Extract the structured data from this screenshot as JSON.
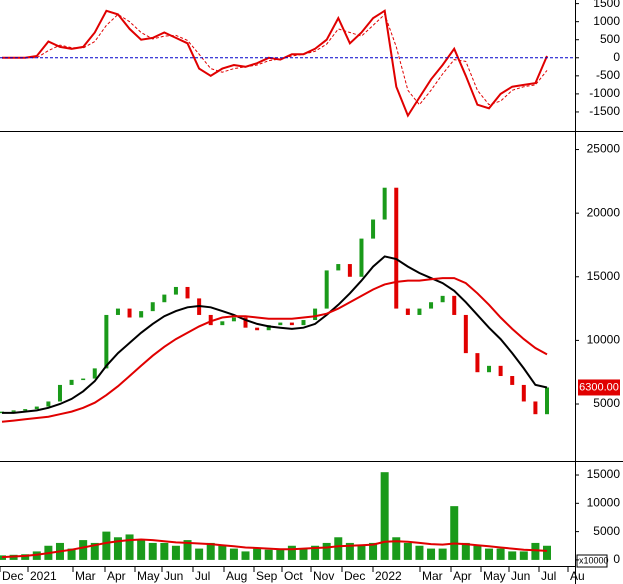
{
  "chart_data": [
    {
      "type": "line",
      "ylim": [
        -2000,
        1600
      ],
      "yticks": [
        1500,
        1000,
        500,
        0,
        -500,
        -1000,
        -1500
      ],
      "zero_line": true,
      "series": [
        {
          "color": "#e00000",
          "style": "solid",
          "values": [
            0,
            0,
            0,
            50,
            450,
            300,
            250,
            300,
            700,
            1300,
            1200,
            800,
            500,
            550,
            700,
            550,
            400,
            -300,
            -500,
            -300,
            -200,
            -250,
            -150,
            0,
            -50,
            100,
            100,
            250,
            500,
            1100,
            400,
            700,
            1100,
            1300,
            -800,
            -1600,
            -1100,
            -600,
            -200,
            250,
            -500,
            -1300,
            -1400,
            -1000,
            -800,
            -750,
            -700,
            50
          ]
        },
        {
          "color": "#e00000",
          "style": "dashed",
          "values": [
            0,
            0,
            0,
            0,
            200,
            350,
            280,
            270,
            450,
            900,
            1200,
            1000,
            700,
            520,
            600,
            620,
            480,
            100,
            -300,
            -400,
            -300,
            -250,
            -200,
            -80,
            -30,
            50,
            100,
            180,
            380,
            800,
            700,
            600,
            900,
            1200,
            300,
            -900,
            -1300,
            -900,
            -450,
            -50,
            -100,
            -900,
            -1300,
            -1200,
            -900,
            -800,
            -750,
            -350
          ]
        }
      ]
    },
    {
      "type": "candlestick",
      "ylim": [
        600,
        26300
      ],
      "yticks": [
        25000,
        20000,
        15000,
        10000,
        5000
      ],
      "up_color": "#1a9a1a",
      "down_color": "#e00000",
      "values": [
        4400,
        4500,
        4600,
        4800,
        5200,
        6500,
        6900,
        7000,
        7800,
        12000,
        12500,
        11800,
        12300,
        13000,
        13600,
        14200,
        13300,
        12000,
        11200,
        11500,
        11800,
        11000,
        10800,
        11200,
        11400,
        11200,
        11600,
        12500,
        15500,
        16000,
        15000,
        18000,
        19500,
        22000,
        12500,
        12000,
        12500,
        13000,
        13500,
        12000,
        9000,
        7500,
        8000,
        7200,
        6500,
        5200,
        4200,
        6300
      ],
      "last_label": "6300.00",
      "series": [
        {
          "color": "#000000",
          "values": [
            4300,
            4300,
            4400,
            4500,
            4700,
            5000,
            5400,
            6000,
            6800,
            8000,
            9000,
            9800,
            10600,
            11300,
            11900,
            12300,
            12600,
            12700,
            12600,
            12300,
            12000,
            11600,
            11300,
            11100,
            11000,
            10900,
            11000,
            11300,
            12000,
            12800,
            13700,
            14700,
            15800,
            16600,
            16400,
            15800,
            15300,
            14900,
            14500,
            13900,
            13000,
            12000,
            11000,
            10100,
            9000,
            7800,
            6500,
            6300
          ]
        },
        {
          "color": "#e00000",
          "values": [
            3600,
            3700,
            3800,
            3900,
            4000,
            4200,
            4400,
            4700,
            5100,
            5700,
            6400,
            7200,
            8000,
            8800,
            9500,
            10100,
            10600,
            11100,
            11500,
            11800,
            11900,
            11900,
            11800,
            11700,
            11700,
            11700,
            11800,
            11900,
            12100,
            12500,
            13000,
            13500,
            14000,
            14400,
            14600,
            14700,
            14700,
            14800,
            14900,
            14900,
            14500,
            13700,
            12800,
            11800,
            10900,
            10100,
            9400,
            8900
          ]
        }
      ]
    },
    {
      "type": "bar",
      "ylim": [
        -900,
        17300
      ],
      "yticks": [
        15000,
        10000,
        5000,
        0
      ],
      "multiplier_label": "x10000",
      "color": "#1a9a1a",
      "values": [
        800,
        900,
        1000,
        1500,
        2500,
        3000,
        2000,
        3500,
        3000,
        5000,
        4000,
        4500,
        3500,
        3000,
        3000,
        2500,
        3500,
        2000,
        3000,
        2500,
        2000,
        1500,
        2000,
        1800,
        2000,
        2500,
        2000,
        2500,
        3000,
        4000,
        3000,
        2500,
        3000,
        15500,
        4000,
        3000,
        2500,
        2000,
        2000,
        9500,
        3000,
        2500,
        2000,
        2000,
        1500,
        1500,
        3000,
        2500
      ],
      "series": [
        {
          "color": "#e00000",
          "values": [
            500,
            600,
            700,
            900,
            1200,
            1500,
            1800,
            2200,
            2600,
            3000,
            3300,
            3500,
            3600,
            3500,
            3300,
            3100,
            3000,
            2900,
            2800,
            2600,
            2400,
            2200,
            2100,
            2000,
            1900,
            1900,
            2000,
            2100,
            2200,
            2400,
            2500,
            2600,
            2700,
            3200,
            3300,
            3200,
            3000,
            2800,
            2700,
            2900,
            2800,
            2600,
            2400,
            2200,
            2000,
            1800,
            1700,
            1600
          ]
        }
      ],
      "x_labels": [
        "Dec",
        "2021",
        "Mar",
        "Apr",
        "May",
        "Jun",
        "Jul",
        "Aug",
        "Sep",
        "Oct",
        "Nov",
        "Dec",
        "2022",
        "Mar",
        "Apr",
        "May",
        "Jun",
        "Jul",
        "Au"
      ]
    }
  ]
}
